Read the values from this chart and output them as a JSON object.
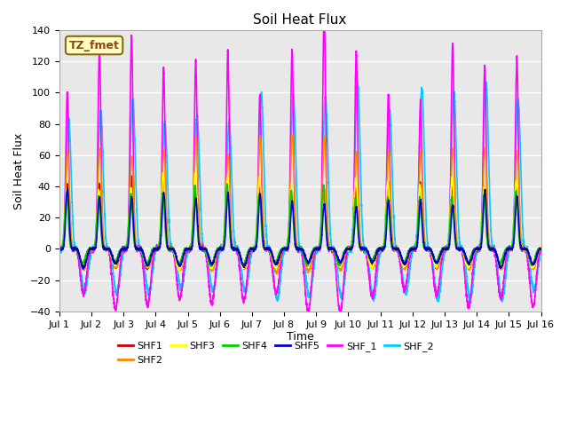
{
  "title": "Soil Heat Flux",
  "xlabel": "Time",
  "ylabel": "Soil Heat Flux",
  "xlim": [
    0,
    15
  ],
  "ylim": [
    -40,
    140
  ],
  "yticks": [
    -40,
    -20,
    0,
    20,
    40,
    60,
    80,
    100,
    120,
    140
  ],
  "xtick_labels": [
    "Jul 1",
    "Jul 2",
    "Jul 3",
    "Jul 4",
    "Jul 5",
    "Jul 6",
    "Jul 7",
    "Jul 8",
    "Jul 9",
    "Jul 10",
    "Jul 11",
    "Jul 12",
    "Jul 13",
    "Jul 14",
    "Jul 15",
    "Jul 16"
  ],
  "plot_bg_color": "#e8e8e8",
  "series_order_plot": [
    "SHF_2",
    "SHF_1",
    "SHF1",
    "SHF2",
    "SHF3",
    "SHF4",
    "SHF5"
  ],
  "series_order_legend": [
    "SHF1",
    "SHF2",
    "SHF3",
    "SHF4",
    "SHF5",
    "SHF_1",
    "SHF_2"
  ],
  "series": {
    "SHF1": {
      "color": "#cc0000",
      "lw": 1.2
    },
    "SHF2": {
      "color": "#ff8800",
      "lw": 1.2
    },
    "SHF3": {
      "color": "#ffff00",
      "lw": 1.2
    },
    "SHF4": {
      "color": "#00cc00",
      "lw": 1.2
    },
    "SHF5": {
      "color": "#0000cc",
      "lw": 1.2
    },
    "SHF_1": {
      "color": "#ff00ff",
      "lw": 1.2
    },
    "SHF_2": {
      "color": "#00ccff",
      "lw": 1.2
    }
  },
  "annotation_text": "TZ_fmet",
  "annotation_color": "#8B4513",
  "annotation_bg": "#ffffc0",
  "annotation_border": "#8B6914",
  "grid_color": "#ffffff",
  "grid_lw": 1.0
}
